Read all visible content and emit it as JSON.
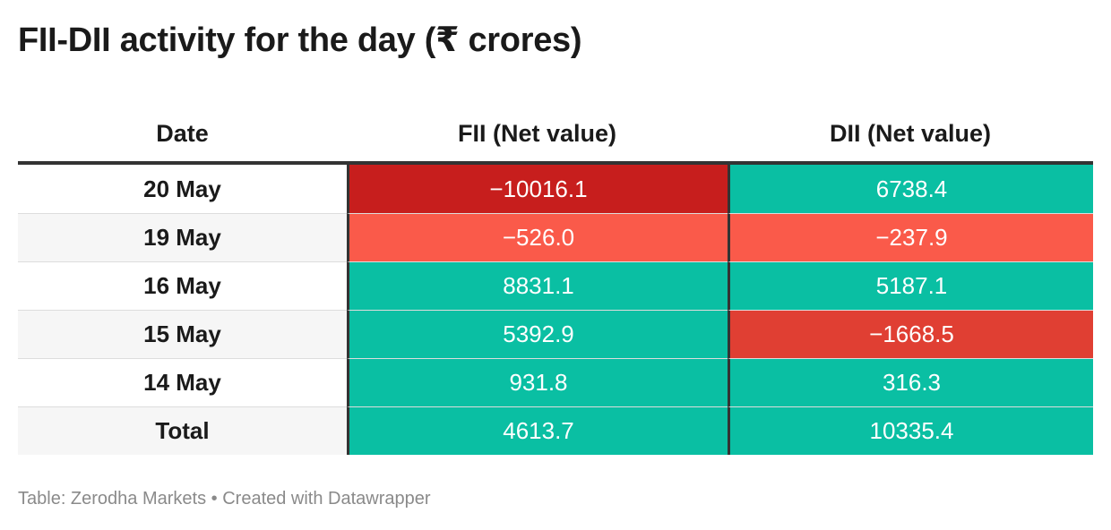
{
  "title": "FII-DII activity for the day (₹ crores)",
  "source": "Table: Zerodha Markets • Created with Datawrapper",
  "colors": {
    "positive": "#0abfa3",
    "negative_strong": "#c71e1d",
    "negative_medium": "#e03f33",
    "negative_light": "#fa5a4a",
    "row_alt": "#f6f6f6",
    "row_base": "#ffffff"
  },
  "chart_data": {
    "type": "table",
    "title": "FII-DII activity for the day (₹ crores)",
    "columns": [
      "Date",
      "FII (Net value)",
      "DII (Net value)"
    ],
    "rows": [
      {
        "date": "20 May",
        "fii": "−10016.1",
        "dii": "6738.4",
        "fii_value": -10016.1,
        "dii_value": 6738.4,
        "fii_color": "#c71e1d",
        "dii_color": "#0abfa3"
      },
      {
        "date": "19 May",
        "fii": "−526.0",
        "dii": "−237.9",
        "fii_value": -526.0,
        "dii_value": -237.9,
        "fii_color": "#fa5a4a",
        "dii_color": "#fa5a4a"
      },
      {
        "date": "16 May",
        "fii": "8831.1",
        "dii": "5187.1",
        "fii_value": 8831.1,
        "dii_value": 5187.1,
        "fii_color": "#0abfa3",
        "dii_color": "#0abfa3"
      },
      {
        "date": "15 May",
        "fii": "5392.9",
        "dii": "−1668.5",
        "fii_value": 5392.9,
        "dii_value": -1668.5,
        "fii_color": "#0abfa3",
        "dii_color": "#e03f33"
      },
      {
        "date": "14 May",
        "fii": "931.8",
        "dii": "316.3",
        "fii_value": 931.8,
        "dii_value": 316.3,
        "fii_color": "#0abfa3",
        "dii_color": "#0abfa3"
      },
      {
        "date": "Total",
        "fii": "4613.7",
        "dii": "10335.4",
        "fii_value": 4613.7,
        "dii_value": 10335.4,
        "fii_color": "#0abfa3",
        "dii_color": "#0abfa3"
      }
    ]
  }
}
